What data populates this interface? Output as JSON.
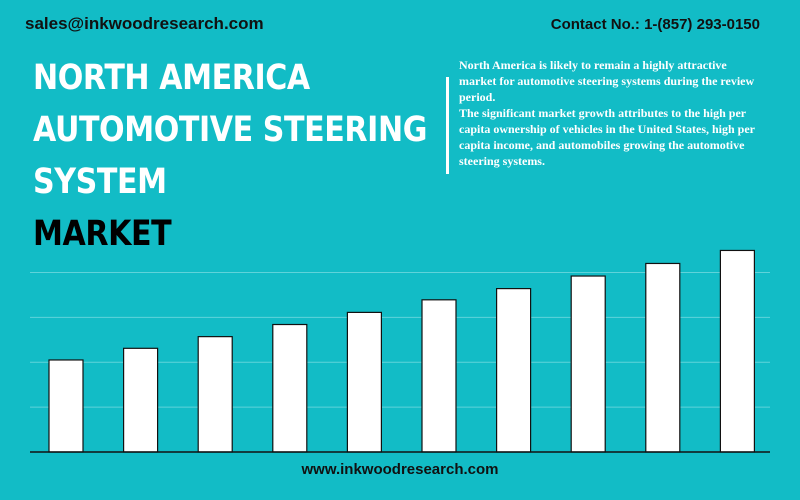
{
  "header": {
    "email": "sales@inkwoodresearch.com",
    "contact": "Contact No.: 1-(857) 293-0150"
  },
  "title": {
    "line1": "NORTH AMERICA",
    "line2": "AUTOMOTIVE STEERING",
    "line3": "SYSTEM",
    "line4": "MARKET"
  },
  "description": {
    "para1": "North America is likely to remain a highly attractive market for automotive steering systems during the review period.",
    "para2": "The significant market growth attributes to the high per capita ownership of vehicles in the United States, high per capita income, and automobiles growing the automotive steering systems."
  },
  "footer": {
    "website": "www.inkwoodresearch.com"
  },
  "colors": {
    "background": "#12bcc6",
    "bar_fill": "#ffffff",
    "bar_stroke": "#111111",
    "grid": "#5fd3da"
  },
  "chart_data": {
    "type": "bar",
    "values": [
      20.5,
      23.1,
      25.7,
      28.4,
      31.1,
      33.9,
      36.4,
      39.2,
      42.0,
      44.9
    ],
    "ylim": [
      0,
      45
    ],
    "grid": true
  }
}
